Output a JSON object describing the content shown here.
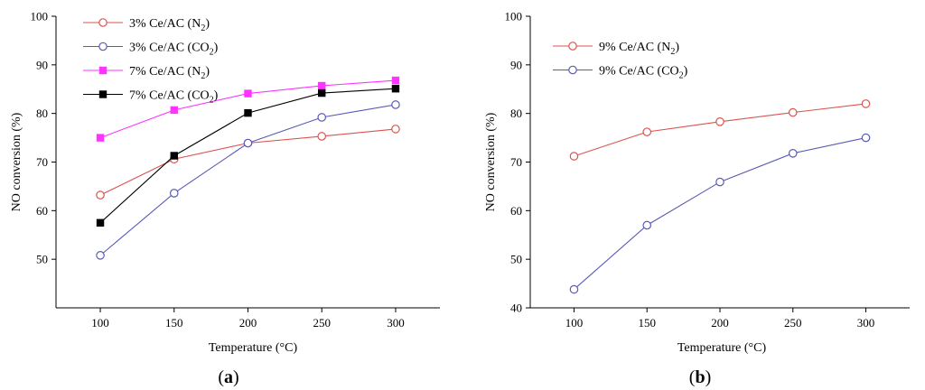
{
  "chart_data": [
    {
      "type": "line",
      "panel_label": "a",
      "xlabel": "Temperature (°C)",
      "ylabel": "NO conversion (%)",
      "xlim": [
        70,
        330
      ],
      "ylim": [
        40,
        100
      ],
      "x_ticks": [
        100,
        150,
        200,
        250,
        300
      ],
      "y_ticks": [
        50,
        60,
        70,
        80,
        90,
        100
      ],
      "x": [
        100,
        150,
        200,
        250,
        300
      ],
      "series": [
        {
          "name": "3% Ce/AC (N2)",
          "label_main": "3% Ce/AC (N",
          "label_sub": "2",
          "label_end": ")",
          "color": "#d9534f",
          "marker": "open-circle",
          "values": [
            63.2,
            70.6,
            73.9,
            75.3,
            76.8
          ]
        },
        {
          "name": "3% Ce/AC (CO2)",
          "label_main": "3% Ce/AC (CO",
          "label_sub": "2",
          "label_end": ")",
          "color": "#5b5bb5",
          "marker": "open-circle",
          "values": [
            50.8,
            63.6,
            73.9,
            79.2,
            81.8
          ]
        },
        {
          "name": "7% Ce/AC (N2)",
          "label_main": "7% Ce/AC (N",
          "label_sub": "2",
          "label_end": ")",
          "color": "#ff33ff",
          "marker": "filled-square",
          "values": [
            75.0,
            80.7,
            84.1,
            85.7,
            86.8
          ]
        },
        {
          "name": "7% Ce/AC (CO2)",
          "label_main": "7% Ce/AC (CO",
          "label_sub": "2",
          "label_end": ")",
          "color": "#000000",
          "marker": "filled-square",
          "values": [
            57.5,
            71.3,
            80.1,
            84.2,
            85.1
          ]
        }
      ],
      "legend_position": "top-left"
    },
    {
      "type": "line",
      "panel_label": "b",
      "xlabel": "Temperature (°C)",
      "ylabel": "NO conversion (%)",
      "xlim": [
        70,
        330
      ],
      "ylim": [
        40,
        100
      ],
      "x_ticks": [
        100,
        150,
        200,
        250,
        300
      ],
      "y_ticks": [
        40,
        50,
        60,
        70,
        80,
        90,
        100
      ],
      "x": [
        100,
        150,
        200,
        250,
        300
      ],
      "series": [
        {
          "name": "9% Ce/AC (N2)",
          "label_main": "9% Ce/AC (N",
          "label_sub": "2",
          "label_end": ")",
          "color": "#d9534f",
          "marker": "open-circle",
          "values": [
            71.2,
            76.2,
            78.3,
            80.2,
            82.0
          ]
        },
        {
          "name": "9% Ce/AC (CO2)",
          "label_main": "9% Ce/AC (CO",
          "label_sub": "2",
          "label_end": ")",
          "color": "#5b5bb5",
          "marker": "open-circle",
          "values": [
            43.8,
            57.0,
            65.9,
            71.8,
            75.0
          ]
        }
      ],
      "legend_position": "top-left"
    }
  ]
}
